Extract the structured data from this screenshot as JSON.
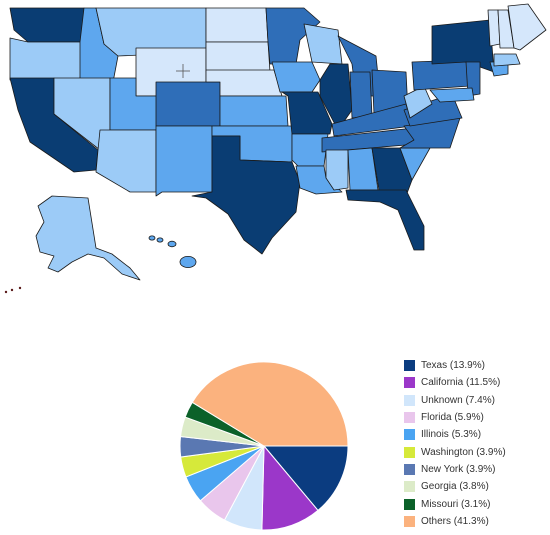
{
  "map": {
    "shade_colors": {
      "darkest": "#0a3d73",
      "dark": "#2f6eb8",
      "medium": "#5ea7ee",
      "light": "#9ccbf7",
      "lightest": "#d5e7fb"
    }
  },
  "chart_data": {
    "type": "pie",
    "start_angle_deg": 90,
    "direction": "clockwise",
    "slices": [
      {
        "label": "Texas (13.9%)",
        "value": 13.9,
        "color": "#0b3c80"
      },
      {
        "label": "California (11.5%)",
        "value": 11.5,
        "color": "#9b37c9"
      },
      {
        "label": "Unknown (7.4%)",
        "value": 7.4,
        "color": "#d1e6fb"
      },
      {
        "label": "Florida (5.9%)",
        "value": 5.9,
        "color": "#e9c6ec"
      },
      {
        "label": "Illinois (5.3%)",
        "value": 5.3,
        "color": "#4aa4f2"
      },
      {
        "label": "Washington (3.9%)",
        "value": 3.9,
        "color": "#d6e93a"
      },
      {
        "label": "New York (3.9%)",
        "value": 3.9,
        "color": "#5a78b2"
      },
      {
        "label": "Georgia (3.8%)",
        "value": 3.8,
        "color": "#dcebc8"
      },
      {
        "label": "Missouri (3.1%)",
        "value": 3.1,
        "color": "#0b6129"
      },
      {
        "label": "Others (41.3%)",
        "value": 41.3,
        "color": "#fbb27e"
      }
    ],
    "legend_position": "right"
  }
}
